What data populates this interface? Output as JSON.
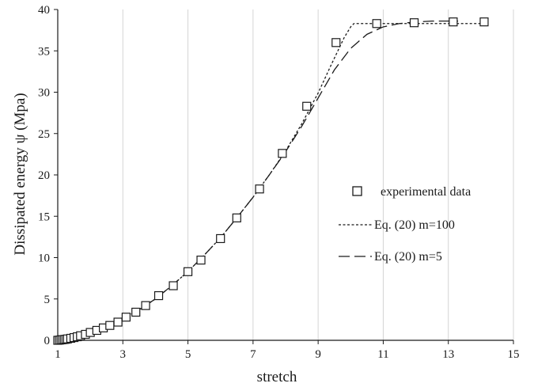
{
  "chart_data": {
    "type": "scatter",
    "xlabel": "stretch",
    "ylabel": "Dissipated energy ψ (Mpa)",
    "xlim": [
      1,
      15
    ],
    "ylim": [
      0,
      40
    ],
    "xticks": [
      1,
      3,
      5,
      7,
      9,
      11,
      13,
      15
    ],
    "yticks": [
      0,
      5,
      10,
      15,
      20,
      25,
      30,
      35,
      40
    ],
    "grid": "vertical",
    "legend_position": "right",
    "series": [
      {
        "name": "experimental data",
        "kind": "markers",
        "marker": "open-square",
        "x": [
          1.0,
          1.05,
          1.1,
          1.15,
          1.2,
          1.25,
          1.3,
          1.4,
          1.5,
          1.6,
          1.7,
          1.85,
          2.0,
          2.2,
          2.4,
          2.6,
          2.85,
          3.1,
          3.4,
          3.7,
          4.1,
          4.55,
          5.0,
          5.4,
          6.0,
          6.5,
          7.2,
          7.9,
          8.65,
          9.55,
          10.8,
          11.95,
          13.15,
          14.1
        ],
        "y": [
          0.0,
          0.02,
          0.05,
          0.08,
          0.1,
          0.13,
          0.17,
          0.24,
          0.33,
          0.43,
          0.55,
          0.72,
          0.95,
          1.2,
          1.5,
          1.8,
          2.2,
          2.8,
          3.4,
          4.2,
          5.4,
          6.6,
          8.3,
          9.7,
          12.3,
          14.8,
          18.3,
          22.6,
          28.3,
          36.0,
          38.3,
          38.4,
          38.5,
          38.5
        ]
      },
      {
        "name": "Eq. (20) m=100",
        "kind": "line",
        "dash": "short",
        "x": [
          1.0,
          1.5,
          2.0,
          2.5,
          3.0,
          3.5,
          4.0,
          4.5,
          5.0,
          5.5,
          6.0,
          6.5,
          7.0,
          7.5,
          8.0,
          8.5,
          9.0,
          9.4,
          9.8,
          10.0,
          10.1,
          10.5,
          11.0,
          12.0,
          13.0,
          14.1
        ],
        "y": [
          0.0,
          0.33,
          0.95,
          1.65,
          2.6,
          3.7,
          5.0,
          6.6,
          8.3,
          10.3,
          12.4,
          14.8,
          17.3,
          20.0,
          22.9,
          26.2,
          29.9,
          33.3,
          36.6,
          37.9,
          38.3,
          38.3,
          38.3,
          38.3,
          38.3,
          38.3
        ]
      },
      {
        "name": "Eq. (20) m=5",
        "kind": "line",
        "dash": "long",
        "x": [
          1.0,
          1.5,
          2.0,
          2.5,
          3.0,
          3.5,
          4.0,
          4.5,
          5.0,
          5.5,
          6.0,
          6.5,
          7.0,
          7.5,
          8.0,
          8.5,
          9.0,
          9.5,
          10.0,
          10.5,
          11.0,
          11.5,
          12.0,
          12.5,
          13.0,
          13.3
        ],
        "y": [
          0.0,
          0.33,
          0.95,
          1.65,
          2.6,
          3.7,
          5.0,
          6.6,
          8.3,
          10.3,
          12.4,
          14.8,
          17.3,
          20.0,
          22.8,
          25.9,
          29.3,
          32.7,
          35.3,
          37.0,
          37.9,
          38.3,
          38.5,
          38.6,
          38.6,
          38.6
        ]
      }
    ]
  }
}
